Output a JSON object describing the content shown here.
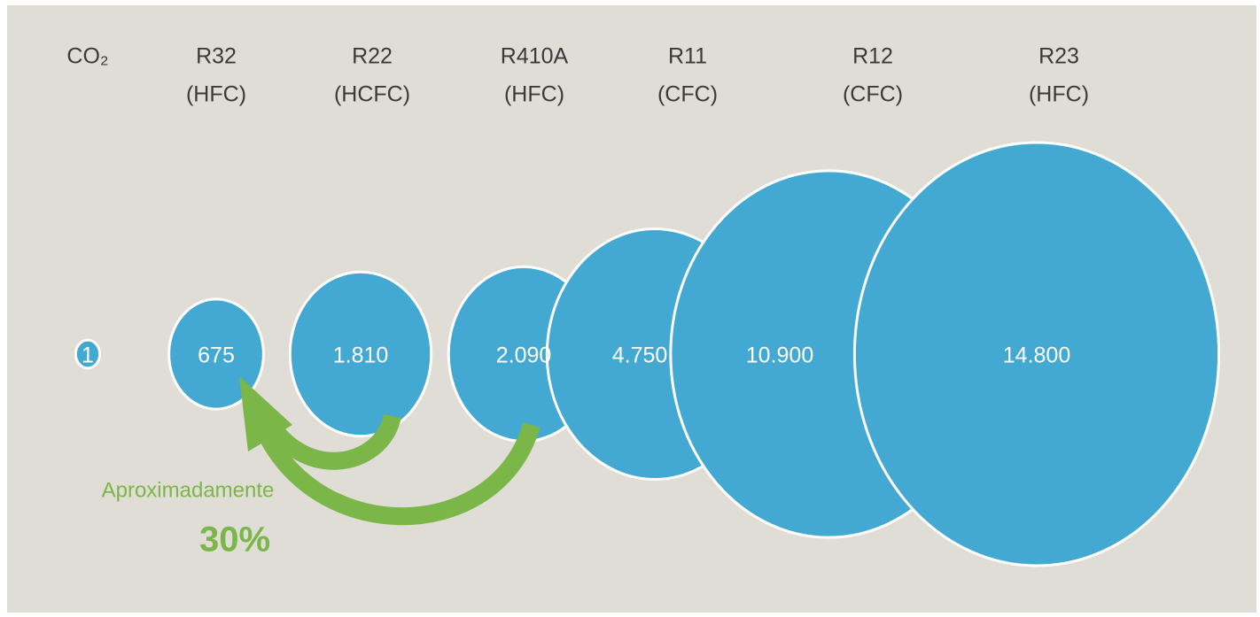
{
  "chart_data": {
    "type": "bubble",
    "categories": [
      "CO₂",
      "R32",
      "R22",
      "R410A",
      "R11",
      "R12",
      "R23"
    ],
    "category_types": [
      null,
      "(HFC)",
      "(HCFC)",
      "(HFC)",
      "(CFC)",
      "(CFC)",
      "(HFC)"
    ],
    "values": [
      1,
      675,
      1810,
      2090,
      4750,
      10900,
      14800
    ],
    "value_labels": [
      "1",
      "675",
      "1.810",
      "2.090",
      "4.750",
      "10.900",
      "14.800"
    ],
    "color": "#43a9d3",
    "annotation": {
      "text": "Aproximadamente",
      "value": "30%",
      "color": "#7ab648"
    }
  }
}
